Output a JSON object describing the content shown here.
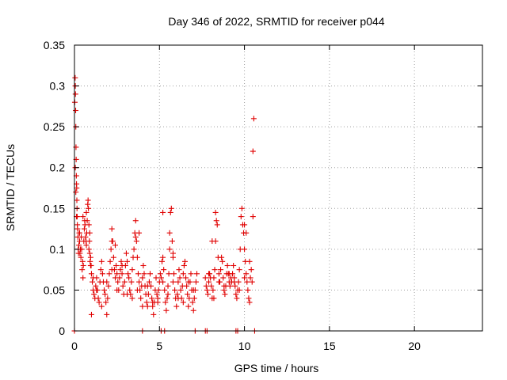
{
  "chart_data": {
    "type": "scatter",
    "title": "Day 346 of 2022, SRMTID for receiver p044",
    "xlabel": "GPS time / hours",
    "ylabel": "SRMTID / TECUs",
    "xlim": [
      0,
      24
    ],
    "ylim": [
      0,
      0.35
    ],
    "xticks": [
      0,
      5,
      10,
      15,
      20
    ],
    "xtick_labels": [
      "0",
      "5",
      "10",
      "15",
      "20"
    ],
    "yticks": [
      0,
      0.05,
      0.1,
      0.15,
      0.2,
      0.25,
      0.3,
      0.35
    ],
    "ytick_labels": [
      "0",
      "0.05",
      "0.1",
      "0.15",
      "0.2",
      "0.25",
      "0.3",
      "0.35"
    ],
    "grid": true,
    "marker": "+",
    "marker_color": "#e00000",
    "series": [
      {
        "name": "p044",
        "x": [
          0.02,
          0.04,
          0.05,
          0.06,
          0.07,
          0.08,
          0.09,
          0.1,
          0.11,
          0.12,
          0.13,
          0.14,
          0.15,
          0.16,
          0.17,
          0.18,
          0.2,
          0.22,
          0.24,
          0.26,
          0.28,
          0.3,
          0.32,
          0.35,
          0.38,
          0.4,
          0.42,
          0.45,
          0.48,
          0.5,
          0.52,
          0.55,
          0.58,
          0.6,
          0.62,
          0.65,
          0.68,
          0.7,
          0.72,
          0.75,
          0.78,
          0.8,
          0.82,
          0.85,
          0.88,
          0.9,
          0.92,
          0.95,
          0.98,
          1.0,
          1.05,
          1.1,
          1.15,
          1.2,
          1.25,
          1.3,
          1.35,
          1.4,
          1.45,
          1.5,
          1.55,
          1.6,
          1.65,
          1.7,
          1.75,
          1.8,
          1.85,
          1.9,
          1.95,
          2.0,
          2.05,
          2.1,
          2.15,
          2.2,
          2.25,
          2.3,
          2.35,
          2.4,
          2.45,
          2.5,
          2.55,
          2.6,
          2.65,
          2.7,
          2.75,
          2.8,
          2.85,
          2.9,
          2.95,
          3.0,
          3.05,
          3.1,
          3.15,
          3.2,
          3.25,
          3.3,
          3.35,
          3.4,
          3.45,
          3.5,
          3.55,
          3.6,
          3.65,
          3.7,
          3.75,
          3.8,
          3.85,
          3.9,
          3.95,
          4.0,
          4.05,
          4.1,
          4.15,
          4.2,
          4.25,
          4.3,
          4.35,
          4.4,
          4.45,
          4.5,
          4.55,
          4.6,
          4.65,
          4.7,
          4.75,
          4.8,
          4.85,
          4.9,
          4.95,
          5.0,
          5.05,
          5.1,
          5.15,
          5.2,
          5.25,
          5.3,
          5.35,
          5.4,
          5.45,
          5.5,
          5.55,
          5.6,
          5.65,
          5.7,
          5.75,
          5.8,
          5.85,
          5.9,
          5.95,
          6.0,
          6.05,
          6.1,
          6.15,
          6.2,
          6.25,
          6.3,
          6.35,
          6.4,
          6.45,
          6.5,
          6.55,
          6.6,
          6.65,
          6.7,
          6.75,
          6.8,
          6.85,
          6.9,
          6.95,
          7.0,
          7.05,
          7.1,
          7.15,
          7.2,
          7.7,
          7.75,
          7.8,
          7.85,
          7.9,
          7.95,
          8.0,
          8.05,
          8.1,
          8.15,
          8.2,
          8.25,
          8.3,
          8.35,
          8.4,
          8.45,
          8.5,
          8.55,
          8.6,
          8.65,
          8.7,
          8.75,
          8.8,
          8.85,
          8.9,
          8.95,
          9.0,
          9.05,
          9.1,
          9.15,
          9.2,
          9.25,
          9.3,
          9.35,
          9.4,
          9.45,
          9.5,
          9.55,
          9.6,
          9.65,
          9.7,
          9.75,
          9.8,
          9.85,
          9.9,
          9.95,
          10.0,
          10.05,
          10.1,
          10.15,
          10.2,
          10.25,
          10.3,
          10.35,
          10.4,
          10.45,
          10.5,
          10.55,
          0.05,
          0.08,
          0.12,
          0.3,
          0.5,
          0.7,
          0.85,
          0.95,
          1.1,
          1.3,
          1.6,
          1.9,
          2.2,
          2.5,
          2.8,
          3.1,
          3.4,
          3.7,
          4.0,
          4.3,
          4.6,
          4.9,
          5.2,
          5.5,
          5.8,
          6.1,
          6.4,
          6.7,
          7.0,
          7.9,
          8.2,
          8.5,
          8.8,
          9.1,
          9.4,
          9.7,
          10.0,
          10.3,
          10.5,
          5.2,
          5.6,
          5.8,
          8.1,
          8.3,
          10.0,
          10.1,
          3.6,
          3.8,
          2.2,
          2.4,
          0.9,
          1.0,
          4.0,
          5.3,
          7.1,
          7.7,
          7.8,
          9.5,
          9.6,
          10.6,
          5.1,
          0.0
        ],
        "y": [
          0.28,
          0.31,
          0.3,
          0.29,
          0.27,
          0.25,
          0.225,
          0.21,
          0.19,
          0.18,
          0.175,
          0.16,
          0.15,
          0.14,
          0.13,
          0.125,
          0.115,
          0.1,
          0.095,
          0.105,
          0.12,
          0.11,
          0.095,
          0.1,
          0.09,
          0.115,
          0.1,
          0.075,
          0.085,
          0.065,
          0.08,
          0.11,
          0.125,
          0.135,
          0.13,
          0.115,
          0.11,
          0.105,
          0.12,
          0.135,
          0.155,
          0.16,
          0.15,
          0.13,
          0.11,
          0.095,
          0.085,
          0.09,
          0.08,
          0.07,
          0.06,
          0.05,
          0.045,
          0.04,
          0.055,
          0.065,
          0.05,
          0.04,
          0.035,
          0.06,
          0.075,
          0.085,
          0.07,
          0.06,
          0.05,
          0.045,
          0.035,
          0.02,
          0.04,
          0.055,
          0.07,
          0.085,
          0.1,
          0.125,
          0.11,
          0.09,
          0.075,
          0.065,
          0.08,
          0.07,
          0.06,
          0.05,
          0.065,
          0.075,
          0.085,
          0.07,
          0.055,
          0.045,
          0.06,
          0.08,
          0.095,
          0.085,
          0.07,
          0.065,
          0.05,
          0.045,
          0.06,
          0.075,
          0.09,
          0.1,
          0.12,
          0.135,
          0.11,
          0.09,
          0.07,
          0.06,
          0.05,
          0.04,
          0.055,
          0.065,
          0.08,
          0.07,
          0.055,
          0.045,
          0.035,
          0.03,
          0.045,
          0.06,
          0.07,
          0.055,
          0.04,
          0.03,
          0.02,
          0.035,
          0.05,
          0.065,
          0.045,
          0.035,
          0.05,
          0.06,
          0.07,
          0.065,
          0.085,
          0.09,
          0.075,
          0.05,
          0.035,
          0.025,
          0.04,
          0.055,
          0.07,
          0.1,
          0.145,
          0.15,
          0.11,
          0.09,
          0.07,
          0.05,
          0.04,
          0.03,
          0.045,
          0.06,
          0.075,
          0.065,
          0.05,
          0.04,
          0.055,
          0.07,
          0.08,
          0.085,
          0.065,
          0.055,
          0.045,
          0.03,
          0.04,
          0.06,
          0.07,
          0.05,
          0.035,
          0.025,
          0.04,
          0.05,
          0.06,
          0.07,
          0.065,
          0.055,
          0.05,
          0.045,
          0.06,
          0.07,
          0.065,
          0.055,
          0.04,
          0.05,
          0.065,
          0.075,
          0.11,
          0.135,
          0.13,
          0.09,
          0.07,
          0.06,
          0.075,
          0.09,
          0.085,
          0.065,
          0.05,
          0.045,
          0.055,
          0.07,
          0.08,
          0.07,
          0.06,
          0.055,
          0.065,
          0.06,
          0.07,
          0.08,
          0.065,
          0.055,
          0.045,
          0.04,
          0.05,
          0.06,
          0.075,
          0.1,
          0.14,
          0.15,
          0.13,
          0.12,
          0.1,
          0.085,
          0.07,
          0.06,
          0.05,
          0.04,
          0.035,
          0.065,
          0.075,
          0.06,
          0.22,
          0.26,
          0.2,
          0.17,
          0.14,
          0.12,
          0.14,
          0.145,
          0.1,
          0.08,
          0.065,
          0.05,
          0.03,
          0.06,
          0.075,
          0.05,
          0.08,
          0.045,
          0.04,
          0.05,
          0.03,
          0.055,
          0.035,
          0.04,
          0.06,
          0.045,
          0.06,
          0.04,
          0.035,
          0.06,
          0.05,
          0.07,
          0.04,
          0.06,
          0.055,
          0.07,
          0.06,
          0.05,
          0.065,
          0.085,
          0.14,
          0.145,
          0.12,
          0.095,
          0.11,
          0.145,
          0.13,
          0.12,
          0.115,
          0.12,
          0.11,
          0.105,
          0.12,
          0.02,
          0.0,
          0.0,
          0.0,
          0.0,
          0.0,
          0.0,
          0.0,
          0.0,
          0.0,
          0.0
        ]
      }
    ]
  }
}
